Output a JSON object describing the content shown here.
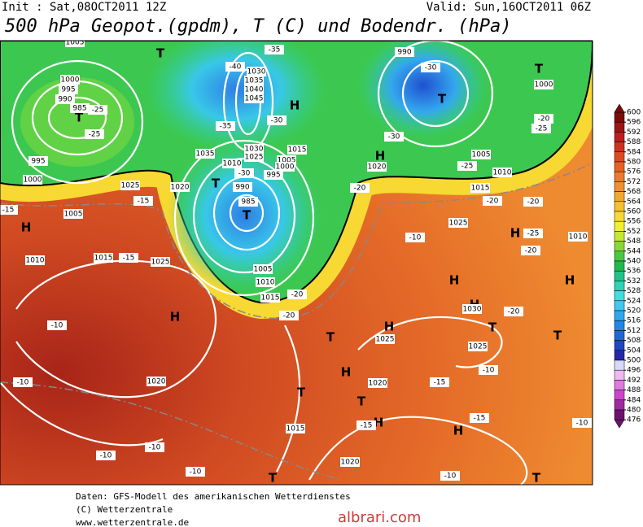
{
  "header": {
    "init": "Init : Sat,08OCT2011 12Z",
    "valid": "Valid: Sun,16OCT2011 06Z",
    "title": "500 hPa Geopot.(gpdm), T (C) und Bodendr. (hPa)"
  },
  "colorbar": {
    "ticks": [
      600,
      596,
      592,
      588,
      584,
      580,
      576,
      572,
      568,
      564,
      560,
      556,
      552,
      548,
      544,
      540,
      536,
      532,
      528,
      524,
      520,
      516,
      512,
      508,
      504,
      500,
      496,
      492,
      488,
      484,
      480,
      476
    ],
    "colors": [
      "#7a0c0c",
      "#9c1414",
      "#bc1e1e",
      "#d03020",
      "#de4a20",
      "#e66224",
      "#ee7a2c",
      "#f09030",
      "#f2a830",
      "#f6c030",
      "#f8d832",
      "#f2ee34",
      "#c6e834",
      "#8ad838",
      "#4cc840",
      "#22b850",
      "#20c48a",
      "#2cd4b8",
      "#3ce0dc",
      "#40c8f0",
      "#30a8ee",
      "#2286e6",
      "#2066d8",
      "#2046c2",
      "#2428a8",
      "#d8d8f8",
      "#f0b8f0",
      "#e07ae0",
      "#cc44cc",
      "#a02aa0",
      "#6c126c"
    ]
  },
  "map_labels": {
    "pressure_centers": [
      "T",
      "T",
      "T",
      "T",
      "T",
      "T",
      "T",
      "T",
      "T",
      "T",
      "T",
      "T",
      "T",
      "H",
      "H",
      "H",
      "H",
      "H",
      "H",
      "H",
      "H",
      "H",
      "H",
      "H",
      "H"
    ],
    "isobar_labels": [
      "1005",
      "1000",
      "995",
      "990",
      "985",
      "995",
      "1000",
      "1005",
      "1030",
      "1035",
      "1040",
      "1045",
      "1035",
      "1030",
      "1025",
      "1010",
      "1015",
      "1005",
      "1000",
      "995",
      "990",
      "985",
      "1005",
      "1010",
      "1015",
      "990",
      "1000",
      "1005",
      "1010",
      "1020",
      "1015",
      "1025",
      "1025",
      "1030",
      "1025",
      "1020",
      "1020",
      "1025",
      "1025",
      "1015",
      "1020",
      "1020",
      "1010",
      "1015",
      "1010"
    ],
    "temperature_labels": [
      "-35",
      "-40",
      "-30",
      "-25",
      "-25",
      "-35",
      "-30",
      "-25",
      "-30",
      "-20",
      "-25",
      "-30",
      "-20",
      "-15",
      "-10",
      "-15",
      "-15",
      "-20",
      "-25",
      "-20",
      "-20",
      "-20",
      "-20",
      "-15",
      "-10",
      "-20",
      "-10",
      "-10",
      "-15",
      "-15",
      "-10",
      "-10",
      "-10",
      "-10",
      "-10"
    ]
  },
  "footer": {
    "line1": "Daten: GFS-Modell des amerikanischen Wetterdienstes",
    "line2": "(C) Wetterzentrale",
    "line3": "www.wetterzentrale.de",
    "watermark": "albrari.com"
  }
}
